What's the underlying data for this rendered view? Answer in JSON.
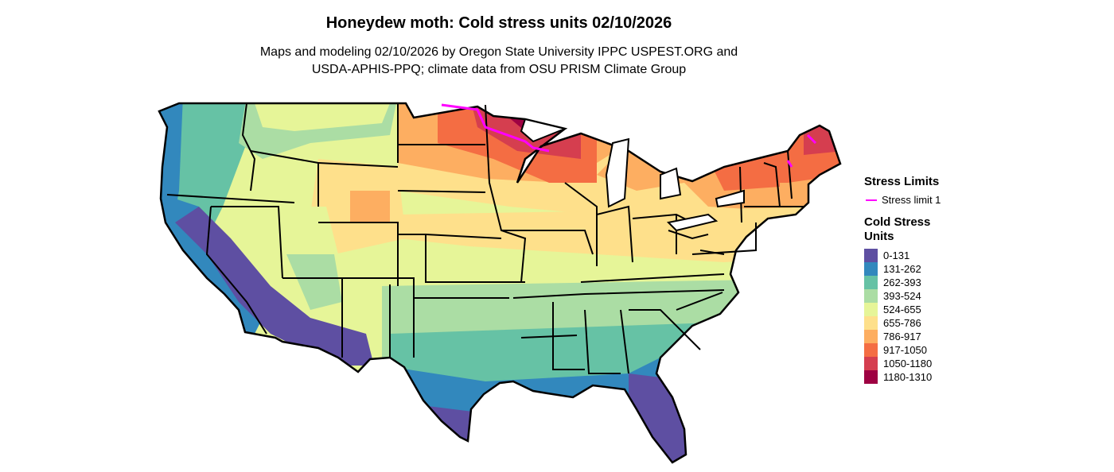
{
  "title": "Honeydew moth: Cold stress units 02/10/2026",
  "subtitle_line1": "Maps and modeling 02/10/2026 by Oregon State University IPPC USPEST.ORG and",
  "subtitle_line2": "USDA-APHIS-PPQ; climate data from OSU PRISM Climate Group",
  "legend": {
    "limits_title": "Stress Limits",
    "limit_label": "Stress limit 1",
    "limit_color": "#ff00ff",
    "units_title": "Cold Stress Units",
    "items": [
      {
        "label": "0-131",
        "color": "#5e4fa2"
      },
      {
        "label": "131-262",
        "color": "#3288bd"
      },
      {
        "label": "262-393",
        "color": "#66c2a5"
      },
      {
        "label": "393-524",
        "color": "#abdda4"
      },
      {
        "label": "524-655",
        "color": "#e6f598"
      },
      {
        "label": "655-786",
        "color": "#fee08b"
      },
      {
        "label": "786-917",
        "color": "#fdae61"
      },
      {
        "label": "917-1050",
        "color": "#f46d43"
      },
      {
        "label": "1050-1180",
        "color": "#d53e4f"
      },
      {
        "label": "1180-1310",
        "color": "#9e0142"
      }
    ]
  }
}
